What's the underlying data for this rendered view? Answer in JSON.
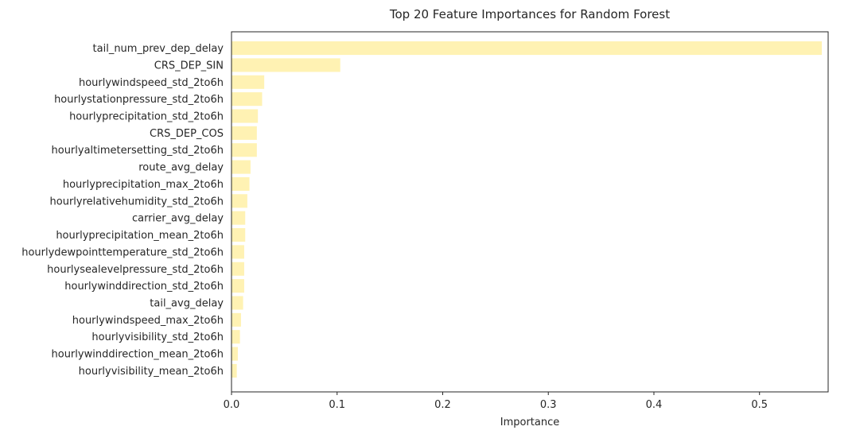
{
  "chart_data": {
    "type": "bar",
    "orientation": "horizontal",
    "title": "Top 20 Feature Importances for Random Forest",
    "xlabel": "Importance",
    "ylabel": "",
    "xlim": [
      0,
      0.565
    ],
    "x_ticks": [
      0.0,
      0.1,
      0.2,
      0.3,
      0.4,
      0.5
    ],
    "x_tick_labels": [
      "0.0",
      "0.1",
      "0.2",
      "0.3",
      "0.4",
      "0.5"
    ],
    "grid": false,
    "bar_color": "#FFF2B3",
    "categories": [
      "tail_num_prev_dep_delay",
      "CRS_DEP_SIN",
      "hourlywindspeed_std_2to6h",
      "hourlystationpressure_std_2to6h",
      "hourlyprecipitation_std_2to6h",
      "CRS_DEP_COS",
      "hourlyaltimetersetting_std_2to6h",
      "route_avg_delay",
      "hourlyprecipitation_max_2to6h",
      "hourlyrelativehumidity_std_2to6h",
      "carrier_avg_delay",
      "hourlyprecipitation_mean_2to6h",
      "hourlydewpointtemperature_std_2to6h",
      "hourlysealevelpressure_std_2to6h",
      "hourlywinddirection_std_2to6h",
      "tail_avg_delay",
      "hourlywindspeed_max_2to6h",
      "hourlyvisibility_std_2to6h",
      "hourlywinddirection_mean_2to6h",
      "hourlyvisibility_mean_2to6h"
    ],
    "values": [
      0.559,
      0.103,
      0.031,
      0.029,
      0.025,
      0.024,
      0.024,
      0.018,
      0.017,
      0.015,
      0.013,
      0.013,
      0.012,
      0.012,
      0.012,
      0.011,
      0.009,
      0.008,
      0.006,
      0.005
    ]
  }
}
